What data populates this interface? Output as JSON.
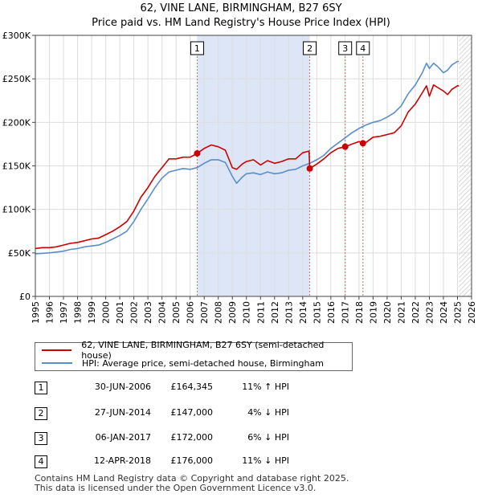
{
  "title_line1": "62, VINE LANE, BIRMINGHAM, B27 6SY",
  "title_line2": "Price paid vs. HM Land Registry's House Price Index (HPI)",
  "colors": {
    "property": "#cc0000",
    "hpi": "#5b8ec9",
    "shade": "#dde6f6",
    "grid": "#dddddd",
    "vline": "#e06060"
  },
  "legend": {
    "property_label": "62, VINE LANE, BIRMINGHAM, B27 6SY (semi-detached house)",
    "hpi_label": "HPI: Average price, semi-detached house, Birmingham"
  },
  "transactions": [
    {
      "num": "1",
      "date": "30-JUN-2006",
      "price": "£164,345",
      "hpi_diff": "11% ↑ HPI"
    },
    {
      "num": "2",
      "date": "27-JUN-2014",
      "price": "£147,000",
      "hpi_diff": "4% ↓ HPI"
    },
    {
      "num": "3",
      "date": "06-JAN-2017",
      "price": "£172,000",
      "hpi_diff": "6% ↓ HPI"
    },
    {
      "num": "4",
      "date": "12-APR-2018",
      "price": "£176,000",
      "hpi_diff": "11% ↓ HPI"
    }
  ],
  "footer": {
    "line1": "Contains HM Land Registry data © Copyright and database right 2025.",
    "line2": "This data is licensed under the Open Government Licence v3.0."
  },
  "chart_data": {
    "type": "line",
    "title": "62, VINE LANE, BIRMINGHAM, B27 6SY",
    "subtitle": "Price paid vs. HM Land Registry's House Price Index (HPI)",
    "xlabel": "",
    "ylabel": "",
    "xlim": [
      1995,
      2026
    ],
    "ylim": [
      0,
      300000
    ],
    "y_ticks": [
      {
        "value": 0,
        "label": "£0"
      },
      {
        "value": 50000,
        "label": "£50K"
      },
      {
        "value": 100000,
        "label": "£100K"
      },
      {
        "value": 150000,
        "label": "£150K"
      },
      {
        "value": 200000,
        "label": "£200K"
      },
      {
        "value": 250000,
        "label": "£250K"
      },
      {
        "value": 300000,
        "label": "£300K"
      }
    ],
    "x_ticks": [
      "1995",
      "1996",
      "1997",
      "1998",
      "1999",
      "2000",
      "2001",
      "2002",
      "2003",
      "2004",
      "2005",
      "2006",
      "2007",
      "2008",
      "2009",
      "2010",
      "2011",
      "2012",
      "2013",
      "2014",
      "2015",
      "2016",
      "2017",
      "2018",
      "2019",
      "2020",
      "2021",
      "2022",
      "2023",
      "2024",
      "2025",
      "2026"
    ],
    "shaded_period": [
      2006.5,
      2014.5
    ],
    "hatched_from": 2025.1,
    "series": [
      {
        "name": "62, VINE LANE, BIRMINGHAM, B27 6SY (semi-detached house)",
        "x": [
          1995.0,
          1995.5,
          1996,
          1996.5,
          1997,
          1997.5,
          1998,
          1998.5,
          1999,
          1999.5,
          2000,
          2000.5,
          2001,
          2001.5,
          2002,
          2002.5,
          2003,
          2003.5,
          2004,
          2004.5,
          2005,
          2005.5,
          2006,
          2006.5,
          2007,
          2007.5,
          2008,
          2008.5,
          2009,
          2009.3,
          2009.7,
          2010,
          2010.5,
          2011,
          2011.5,
          2012,
          2012.5,
          2013,
          2013.5,
          2014,
          2014.45,
          2014.5,
          2015,
          2015.5,
          2016,
          2016.5,
          2017.0,
          2017.5,
          2018,
          2018.3,
          2018.5,
          2019,
          2019.5,
          2020,
          2020.5,
          2021,
          2021.5,
          2022,
          2022.5,
          2022.8,
          2023,
          2023.3,
          2023.6,
          2024,
          2024.3,
          2024.6,
          2025,
          2025.1
        ],
        "values": [
          55000,
          56000,
          56000,
          57000,
          59000,
          61000,
          62000,
          64000,
          66000,
          67000,
          71000,
          75000,
          80000,
          86000,
          98000,
          114000,
          125000,
          138000,
          148000,
          158000,
          158000,
          160000,
          160000,
          164345,
          170000,
          174000,
          172000,
          168000,
          148000,
          146000,
          152000,
          155000,
          157000,
          151000,
          156000,
          153000,
          155000,
          158000,
          158000,
          165000,
          167000,
          147000,
          152000,
          158000,
          165000,
          170000,
          172000,
          175000,
          178000,
          176000,
          177000,
          183000,
          184000,
          186000,
          188000,
          196000,
          212000,
          221000,
          234000,
          242000,
          230000,
          243000,
          240000,
          236000,
          232000,
          238000,
          242000,
          242000
        ]
      },
      {
        "name": "HPI: Average price, semi-detached house, Birmingham",
        "x": [
          1995.0,
          1995.5,
          1996,
          1996.5,
          1997,
          1997.5,
          1998,
          1998.5,
          1999,
          1999.5,
          2000,
          2000.5,
          2001,
          2001.5,
          2002,
          2002.5,
          2003,
          2003.5,
          2004,
          2004.5,
          2005,
          2005.5,
          2006,
          2006.5,
          2007,
          2007.5,
          2008,
          2008.5,
          2009,
          2009.3,
          2009.7,
          2010,
          2010.5,
          2011,
          2011.5,
          2012,
          2012.5,
          2013,
          2013.5,
          2014,
          2014.5,
          2015,
          2015.5,
          2016,
          2016.5,
          2017,
          2017.5,
          2018,
          2018.5,
          2019,
          2019.5,
          2020,
          2020.5,
          2021,
          2021.5,
          2022,
          2022.5,
          2022.8,
          2023,
          2023.3,
          2023.6,
          2024,
          2024.3,
          2024.6,
          2025,
          2025.1
        ],
        "values": [
          49000,
          49500,
          50000,
          51000,
          52000,
          54000,
          55000,
          57000,
          58000,
          59000,
          62000,
          66000,
          70000,
          75000,
          86000,
          100000,
          112000,
          125000,
          136000,
          143000,
          145000,
          147000,
          146000,
          148000,
          153000,
          157000,
          157000,
          154000,
          138000,
          130000,
          137000,
          141000,
          142000,
          140000,
          143000,
          141000,
          142000,
          145000,
          146000,
          150000,
          153000,
          157000,
          162000,
          170000,
          176000,
          182000,
          188000,
          193000,
          197000,
          200000,
          202000,
          206000,
          211000,
          219000,
          233000,
          243000,
          257000,
          268000,
          262000,
          268000,
          264000,
          257000,
          260000,
          266000,
          270000,
          270000
        ]
      }
    ],
    "markers": [
      {
        "label": "1",
        "x": 2006.5,
        "y": 164345
      },
      {
        "label": "2",
        "x": 2014.5,
        "y": 147000
      },
      {
        "label": "3",
        "x": 2017.02,
        "y": 172000
      },
      {
        "label": "4",
        "x": 2018.28,
        "y": 176000
      }
    ]
  }
}
